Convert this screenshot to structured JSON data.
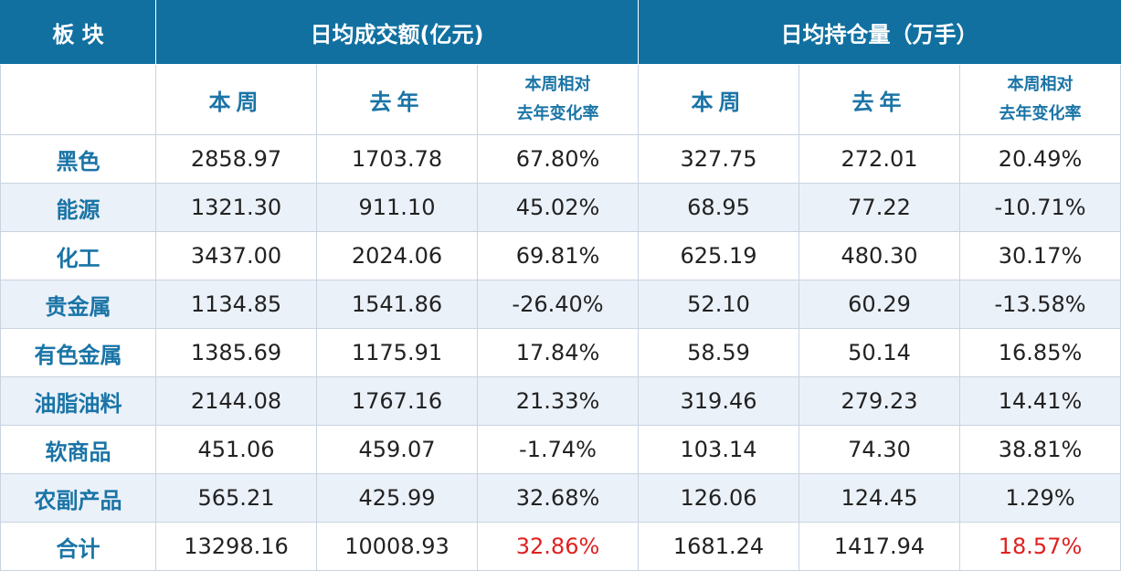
{
  "header": {
    "category": "板 块",
    "group1": "日均成交额(亿元)",
    "group2": "日均持仓量（万手）",
    "this_week": "本周",
    "last_year": "去年",
    "change_line1": "本周相对",
    "change_line2": "去年变化率"
  },
  "rows": [
    {
      "cat": "黑色",
      "v1": "2858.97",
      "v2": "1703.78",
      "v3": "67.80%",
      "v4": "327.75",
      "v5": "272.01",
      "v6": "20.49%"
    },
    {
      "cat": "能源",
      "v1": "1321.30",
      "v2": "911.10",
      "v3": "45.02%",
      "v4": "68.95",
      "v5": "77.22",
      "v6": "-10.71%"
    },
    {
      "cat": "化工",
      "v1": "3437.00",
      "v2": "2024.06",
      "v3": "69.81%",
      "v4": "625.19",
      "v5": "480.30",
      "v6": "30.17%"
    },
    {
      "cat": "贵金属",
      "v1": "1134.85",
      "v2": "1541.86",
      "v3": "-26.40%",
      "v4": "52.10",
      "v5": "60.29",
      "v6": "-13.58%"
    },
    {
      "cat": "有色金属",
      "v1": "1385.69",
      "v2": "1175.91",
      "v3": "17.84%",
      "v4": "58.59",
      "v5": "50.14",
      "v6": "16.85%"
    },
    {
      "cat": "油脂油料",
      "v1": "2144.08",
      "v2": "1767.16",
      "v3": "21.33%",
      "v4": "319.46",
      "v5": "279.23",
      "v6": "14.41%"
    },
    {
      "cat": "软商品",
      "v1": "451.06",
      "v2": "459.07",
      "v3": "-1.74%",
      "v4": "103.14",
      "v5": "74.30",
      "v6": "38.81%"
    },
    {
      "cat": "农副产品",
      "v1": "565.21",
      "v2": "425.99",
      "v3": "32.68%",
      "v4": "126.06",
      "v5": "124.45",
      "v6": "1.29%"
    }
  ],
  "total": {
    "cat": "合计",
    "v1": "13298.16",
    "v2": "10008.93",
    "v3": "32.86%",
    "v4": "1681.24",
    "v5": "1417.94",
    "v6": "18.57%"
  },
  "colors": {
    "header_bg": "#1170a0",
    "accent_text": "#1a74a6",
    "highlight_red": "#e02020",
    "stripe": "#ebf1f9"
  }
}
